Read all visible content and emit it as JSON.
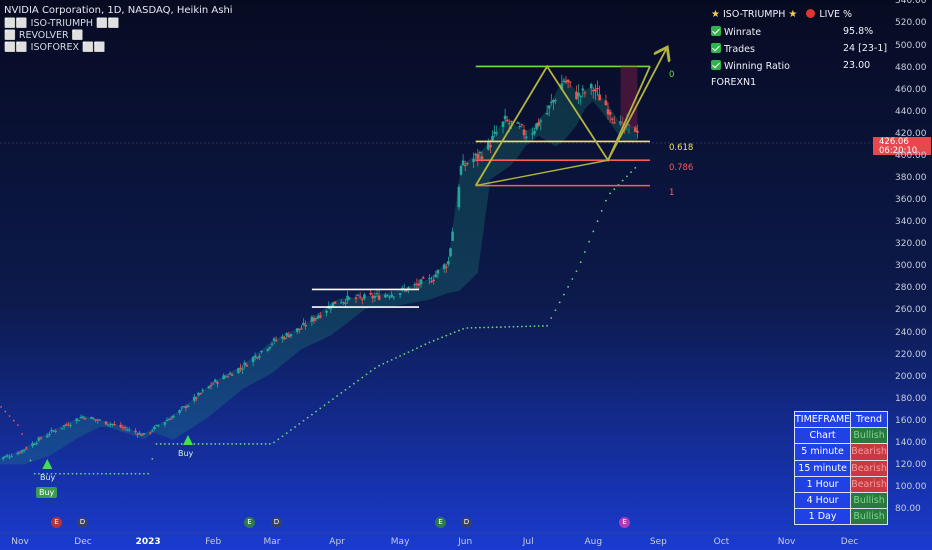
{
  "header": {
    "title": "NVIDIA Corporation, 1D, NASDAQ, Heikin Ashi",
    "indicators": [
      "⬜⬜ ISO-TRIUMPH ⬜⬜",
      "⬜ REVOLVER ⬜",
      "⬜⬜ ISOFOREX ⬜⬜"
    ]
  },
  "performance": {
    "title": "ISO-TRIUMPH",
    "live": "LIVE %",
    "rows": [
      {
        "label": "Winrate",
        "value": "95.8%"
      },
      {
        "label": "Trades",
        "value": "24 [23-1]"
      },
      {
        "label": "Winning Ratio",
        "value": "23.00"
      }
    ],
    "footer": "FOREXN1"
  },
  "price": {
    "last": "426.06",
    "countdown": "06:20:10"
  },
  "signals": {
    "buy1": "Buy",
    "buy2": "Buy",
    "buy3": "Buy"
  },
  "events": [
    "E",
    "D",
    "E",
    "D",
    "E",
    "D",
    "E"
  ],
  "fib_labels": [
    "0",
    "0.618",
    "0.786",
    "1"
  ],
  "trend_table": {
    "header": [
      "TIMEFRAME",
      "Trend"
    ],
    "rows": [
      {
        "tf": "Chart",
        "trend": "Bullish"
      },
      {
        "tf": "5 minute",
        "trend": "Bearish"
      },
      {
        "tf": "15 minute",
        "trend": "Bearish"
      },
      {
        "tf": "1 Hour",
        "trend": "Bearish"
      },
      {
        "tf": "4 Hour",
        "trend": "Bullish"
      },
      {
        "tf": "1 Day",
        "trend": "Bullish"
      }
    ]
  },
  "chart_data": {
    "type": "candlestick",
    "title": "NVIDIA Corporation, 1D, NASDAQ, Heikin Ashi",
    "x_ticks": [
      "Nov",
      "Dec",
      "2023",
      "Feb",
      "Mar",
      "Apr",
      "May",
      "Jun",
      "Jul",
      "Aug",
      "Sep",
      "Oct",
      "Nov",
      "Dec"
    ],
    "y_ticks": [
      80,
      100,
      120,
      140,
      160,
      180,
      200,
      220,
      240,
      260,
      280,
      300,
      320,
      340,
      360,
      380,
      400,
      420,
      440,
      460,
      480,
      500,
      520,
      540
    ],
    "ylim": [
      75,
      550
    ],
    "price_path": [
      [
        "2022-10-20",
        125
      ],
      [
        "2022-11-01",
        133
      ],
      [
        "2022-11-15",
        150
      ],
      [
        "2022-12-01",
        165
      ],
      [
        "2022-12-15",
        158
      ],
      [
        "2022-12-30",
        148
      ],
      [
        "2023-01-15",
        168
      ],
      [
        "2023-02-01",
        195
      ],
      [
        "2023-02-15",
        210
      ],
      [
        "2023-03-01",
        232
      ],
      [
        "2023-03-15",
        245
      ],
      [
        "2023-04-01",
        270
      ],
      [
        "2023-04-15",
        272
      ],
      [
        "2023-05-01",
        278
      ],
      [
        "2023-05-15",
        288
      ],
      [
        "2023-05-24",
        305
      ],
      [
        "2023-05-30",
        390
      ],
      [
        "2023-06-10",
        405
      ],
      [
        "2023-06-20",
        432
      ],
      [
        "2023-07-01",
        420
      ],
      [
        "2023-07-10",
        440
      ],
      [
        "2023-07-18",
        470
      ],
      [
        "2023-07-25",
        455
      ],
      [
        "2023-08-01",
        462
      ],
      [
        "2023-08-08",
        445
      ],
      [
        "2023-08-15",
        425
      ],
      [
        "2023-08-22",
        426
      ]
    ],
    "trailing_stop": [
      [
        "2022-10-15",
        190
      ],
      [
        "2022-11-01",
        155
      ],
      [
        "2022-11-08",
        113
      ],
      [
        "2023-01-01",
        113
      ],
      [
        "2023-01-05",
        140
      ],
      [
        "2023-03-01",
        140
      ],
      [
        "2023-04-20",
        210
      ],
      [
        "2023-05-15",
        232
      ],
      [
        "2023-06-01",
        245
      ],
      [
        "2023-07-10",
        247
      ],
      [
        "2023-07-25",
        300
      ],
      [
        "2023-08-08",
        365
      ],
      [
        "2023-08-22",
        392
      ]
    ],
    "consolidation_box": {
      "from": "2023-03-20",
      "to": "2023-05-10",
      "high": 280,
      "low": 264
    },
    "fib_levels": [
      {
        "label": "0",
        "value": 482
      },
      {
        "label": "0.618",
        "value": 414
      },
      {
        "label": "0.786",
        "value": 397
      },
      {
        "label": "1",
        "value": 374
      }
    ],
    "last_price": 426.06
  },
  "colors": {
    "bull": "#26a69a",
    "bear": "#ef5350",
    "stop": "#6fd17f",
    "fib0": "#6ee042",
    "fib618": "#f1e45a",
    "fib786": "#ff5a5a",
    "pattern": "#b3b43f"
  }
}
